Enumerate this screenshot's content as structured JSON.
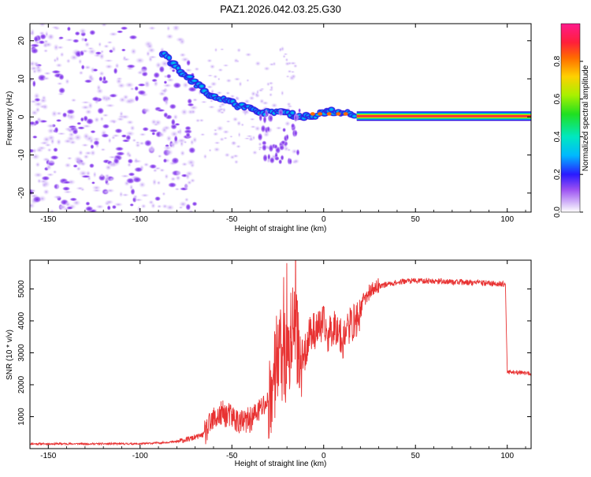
{
  "page": {
    "title": "PAZ1.2026.042.03.25.G30"
  },
  "colors": {
    "axis": "#000000",
    "snr_line": "#e83232"
  },
  "chart_data": [
    {
      "type": "heatmap",
      "name": "spectrogram",
      "title": "PAZ1.2026.042.03.25.G30",
      "xlabel": "Height of straight line (km)",
      "ylabel": "Frequency (Hz)",
      "xlim": [
        -160,
        113
      ],
      "ylim": [
        -25,
        24.5
      ],
      "xticks": [
        -150,
        -100,
        -50,
        0,
        50,
        100
      ],
      "yticks": [
        -20,
        -10,
        0,
        10,
        20
      ],
      "colorbar": {
        "label": "Normalized spectral amplitude",
        "range": [
          0,
          1
        ],
        "ticks": [
          0.0,
          0.2,
          0.4,
          0.6,
          0.8
        ],
        "tick_labels": [
          "0.0",
          "0.2",
          "0.4",
          "0.6",
          "0.8"
        ],
        "colormap": [
          "#ffffff",
          "#d9c3f7",
          "#8b3cf0",
          "#4a1be6",
          "#1a1aff",
          "#00b0ff",
          "#00e8d0",
          "#2ee62e",
          "#b8f000",
          "#ffd000",
          "#ff5000",
          "#ff1f4f",
          "#ff1a8c"
        ]
      },
      "ridge": [
        {
          "x": -88,
          "f": 17,
          "amp": 0.2
        },
        {
          "x": -83,
          "f": 14.5,
          "amp": 0.15
        },
        {
          "x": -78,
          "f": 12,
          "amp": 0.12
        },
        {
          "x": -73,
          "f": 10,
          "amp": 0.14
        },
        {
          "x": -68,
          "f": 8,
          "amp": 0.12
        },
        {
          "x": -62,
          "f": 6,
          "amp": 0.16
        },
        {
          "x": -57,
          "f": 5,
          "amp": 0.14
        },
        {
          "x": -52,
          "f": 4,
          "amp": 0.18
        },
        {
          "x": -47,
          "f": 3,
          "amp": 0.2
        },
        {
          "x": -42,
          "f": 2.5,
          "amp": 0.18
        },
        {
          "x": -37,
          "f": 1.8,
          "amp": 0.18
        },
        {
          "x": -32,
          "f": 1.2,
          "amp": 0.2
        },
        {
          "x": -27,
          "f": 1.2,
          "amp": 0.2
        },
        {
          "x": -22,
          "f": 1.5,
          "amp": 0.22
        },
        {
          "x": -17,
          "f": 0.5,
          "amp": 0.3
        },
        {
          "x": -12,
          "f": -0.3,
          "amp": 0.4
        },
        {
          "x": -7,
          "f": 0.2,
          "amp": 0.5
        },
        {
          "x": -2,
          "f": 0.8,
          "amp": 0.6
        },
        {
          "x": 3,
          "f": 1.5,
          "amp": 0.65
        },
        {
          "x": 8,
          "f": 1.0,
          "amp": 0.7
        },
        {
          "x": 13,
          "f": 0.8,
          "amp": 0.8
        },
        {
          "x": 18,
          "f": 0.4,
          "amp": 0.9
        },
        {
          "x": 113,
          "f": 0.2,
          "amp": 0.95
        }
      ]
    },
    {
      "type": "line",
      "name": "snr",
      "title": "",
      "xlabel": "Height of straight line (km)",
      "ylabel": "SNR (10 * v/v)",
      "xlim": [
        -160,
        113
      ],
      "ylim": [
        0,
        5900
      ],
      "xticks": [
        -150,
        -100,
        -50,
        0,
        50,
        100
      ],
      "yticks": [
        1000,
        2000,
        3000,
        4000,
        5000
      ],
      "series": [
        {
          "name": "SNR",
          "x": [
            -160,
            -140,
            -120,
            -100,
            -90,
            -80,
            -75,
            -70,
            -65,
            -60,
            -55,
            -50,
            -45,
            -40,
            -35,
            -30,
            -27,
            -25,
            -22,
            -20,
            -17,
            -15,
            -12,
            -10,
            -8,
            -5,
            -2,
            0,
            2,
            5,
            8,
            10,
            12,
            15,
            18,
            20,
            22,
            25,
            30,
            35,
            40,
            45,
            50,
            55,
            60,
            70,
            80,
            90,
            98,
            99,
            100,
            105,
            110,
            113
          ],
          "values": [
            150,
            150,
            150,
            150,
            180,
            220,
            280,
            350,
            450,
            900,
            1100,
            1000,
            800,
            900,
            1200,
            1500,
            2300,
            3000,
            2800,
            2700,
            3800,
            3500,
            2800,
            3000,
            3600,
            3700,
            3800,
            3900,
            3500,
            3800,
            3800,
            3300,
            3700,
            3900,
            4000,
            4300,
            4700,
            4900,
            5100,
            5150,
            5200,
            5250,
            5250,
            5250,
            5250,
            5220,
            5200,
            5180,
            5150,
            5150,
            2400,
            2400,
            2350,
            2350
          ]
        }
      ]
    }
  ]
}
